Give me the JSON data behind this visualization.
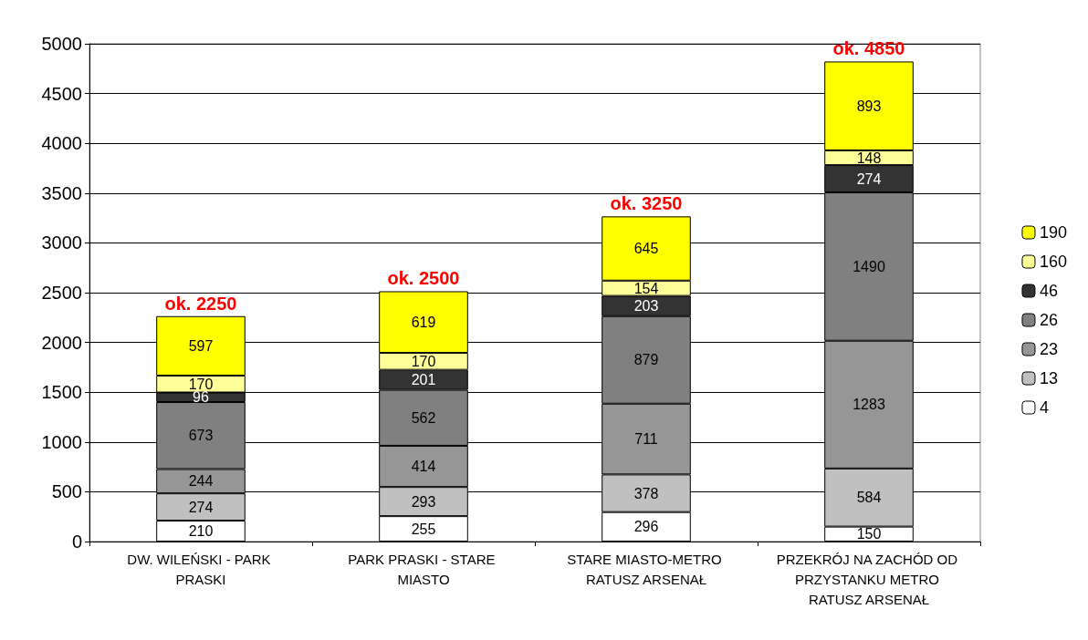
{
  "chart_data": {
    "type": "bar",
    "stacked": true,
    "categories": [
      "DW. WILEŃSKI - PARK PRASKI",
      "PARK PRASKI - STARE MIASTO",
      "STARE MIASTO-METRO RATUSZ ARSENAŁ",
      "PRZEKRÓJ NA ZACHÓD OD PRZYSTANKU METRO RATUSZ ARSENAŁ"
    ],
    "series": [
      {
        "name": "4",
        "color": "#ffffff",
        "values": [
          210,
          255,
          296,
          150
        ]
      },
      {
        "name": "13",
        "color": "#c0c0c0",
        "values": [
          274,
          293,
          378,
          584
        ]
      },
      {
        "name": "23",
        "color": "#969696",
        "values": [
          244,
          414,
          711,
          1283
        ]
      },
      {
        "name": "26",
        "color": "#808080",
        "values": [
          673,
          562,
          879,
          1490
        ]
      },
      {
        "name": "46",
        "color": "#333333",
        "values": [
          96,
          201,
          203,
          274
        ]
      },
      {
        "name": "160",
        "color": "#ffff99",
        "values": [
          170,
          170,
          154,
          148
        ]
      },
      {
        "name": "190",
        "color": "#ffff00",
        "values": [
          597,
          619,
          645,
          893
        ]
      }
    ],
    "annotations": [
      {
        "text": "ok. 2250",
        "x": "DW. WILEŃSKI - PARK PRASKI",
        "y": 2264
      },
      {
        "text": "ok. 2500",
        "x": "PARK PRASKI - STARE MIASTO",
        "y": 2514
      },
      {
        "text": "ok. 3250",
        "x": "STARE MIASTO-METRO RATUSZ ARSENAŁ",
        "y": 3266
      },
      {
        "text": "ok. 4850",
        "x": "PRZEKRÓJ NA ZACHÓD OD PRZYSTANKU METRO RATUSZ ARSENAŁ",
        "y": 4822
      }
    ],
    "ylim": [
      0,
      5000
    ],
    "yticks": [
      0,
      500,
      1000,
      1500,
      2000,
      2500,
      3000,
      3500,
      4000,
      4500,
      5000
    ],
    "grid": "y",
    "legend": "right",
    "data_labels": true
  }
}
